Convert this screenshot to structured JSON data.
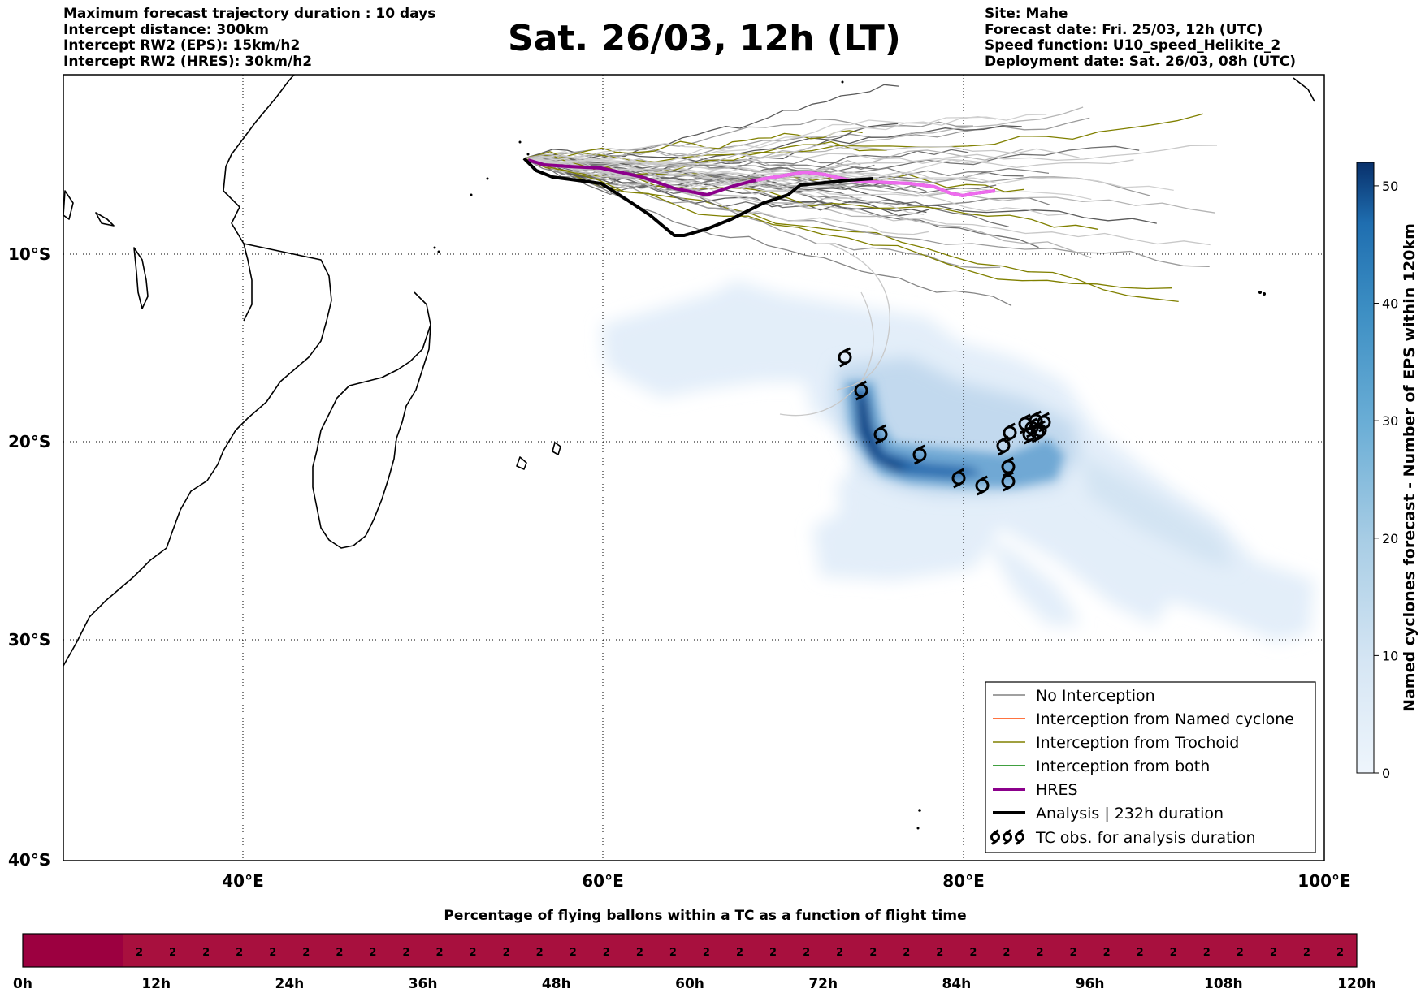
{
  "header": {
    "title": "Sat. 26/03, 12h (LT)",
    "left_lines": [
      "Maximum forecast trajectory duration : 10 days",
      "Intercept distance: 300km",
      "Intercept RW2 (EPS):  15km/h2",
      "Intercept RW2 (HRES): 30km/h2"
    ],
    "right_lines": [
      "Site: Mahe",
      "Forecast date: Fri. 25/03, 12h (UTC)",
      "Speed function: U10_speed_Helikite_2",
      "Deployment date: Sat. 26/03, 08h (UTC)"
    ]
  },
  "map": {
    "lon_ticks": [
      "40°E",
      "60°E",
      "80°E",
      "100°E"
    ],
    "lat_ticks": [
      "10°S",
      "20°S",
      "30°S",
      "40°S"
    ],
    "extent": {
      "lon_min": 30,
      "lon_max": 100,
      "lat_min": -40,
      "lat_max": 1
    },
    "site": "Mahe",
    "tc_obs_count": 17
  },
  "legend": {
    "items": [
      {
        "label": "No Interception",
        "color": "#808080",
        "style": "thin"
      },
      {
        "label": "Interception from Named cyclone",
        "color": "#ff4500",
        "style": "thin"
      },
      {
        "label": "Interception from Trochoid",
        "color": "#808000",
        "style": "thin"
      },
      {
        "label": "Interception from both",
        "color": "#008000",
        "style": "thin"
      },
      {
        "label": "HRES",
        "color": "#8b008b",
        "style": "thick"
      },
      {
        "label": "Analysis | 232h duration",
        "color": "#000000",
        "style": "thick"
      },
      {
        "label": "TC obs. for analysis duration",
        "color": "#000000",
        "style": "symbol"
      }
    ]
  },
  "colorbar": {
    "label": "Named cyclones forecast - Number of EPS within 120km",
    "ticks": [
      "0",
      "10",
      "20",
      "30",
      "40",
      "50"
    ],
    "min": 0,
    "max": 52,
    "colors": [
      "#eef5fc",
      "#d6e6f4",
      "#a8cde5",
      "#6baed6",
      "#3c8ec3",
      "#1f6eb0",
      "#08306b"
    ]
  },
  "bottom_bar": {
    "title": "Percentage of flying ballons within a TC as a function of flight time",
    "time_labels": [
      "0h",
      "12h",
      "24h",
      "36h",
      "48h",
      "60h",
      "72h",
      "84h",
      "96h",
      "108h",
      "120h"
    ],
    "first_cell_value": "",
    "cell_value": "2",
    "cell_count": 37,
    "colors": {
      "first": "#9c0040",
      "rest": "#a8103e"
    }
  }
}
